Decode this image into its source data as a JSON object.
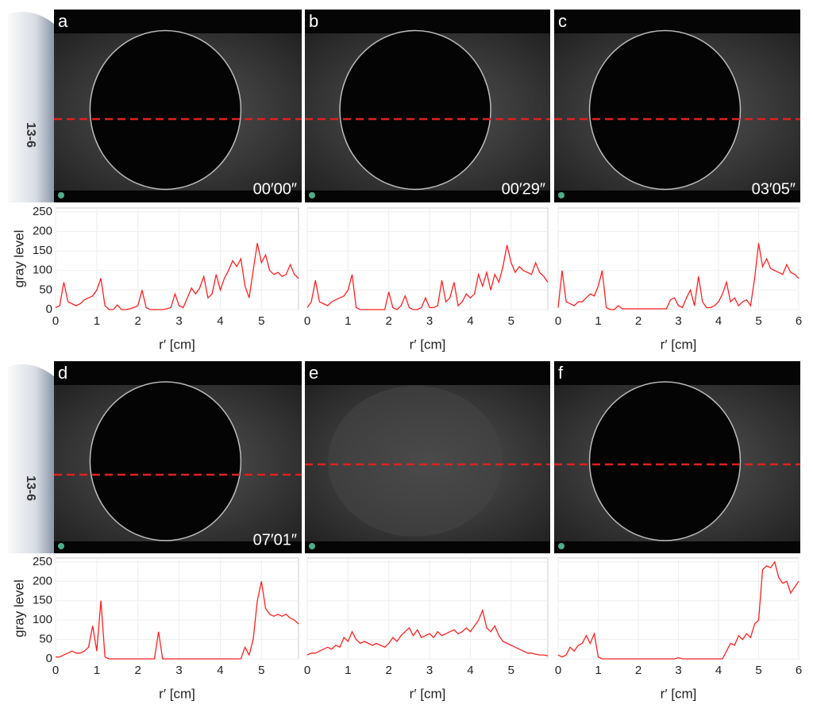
{
  "probe_labels": [
    "13-6",
    "13-6"
  ],
  "chart_data": [
    {
      "type": "line",
      "panel_label": "a",
      "timestamp": "00′00″",
      "ylabel": "gray level",
      "xlabel": "r′ [cm]",
      "color": "#ff2020",
      "grid": true,
      "show_yticklabels": true,
      "xlim": [
        0,
        5.9
      ],
      "xticks": [
        0,
        1,
        2,
        3,
        4,
        5
      ],
      "ylim": [
        0,
        260
      ],
      "yticks": [
        0,
        50,
        100,
        150,
        200,
        250
      ],
      "x": [
        0,
        0.1,
        0.2,
        0.3,
        0.4,
        0.5,
        0.6,
        0.7,
        0.8,
        0.9,
        1,
        1.1,
        1.2,
        1.3,
        1.4,
        1.5,
        1.6,
        1.7,
        1.8,
        1.9,
        2,
        2.1,
        2.2,
        2.3,
        2.4,
        2.5,
        2.6,
        2.7,
        2.8,
        2.9,
        3,
        3.1,
        3.2,
        3.3,
        3.4,
        3.5,
        3.6,
        3.7,
        3.8,
        3.9,
        4,
        4.1,
        4.2,
        4.3,
        4.4,
        4.5,
        4.6,
        4.7,
        4.8,
        4.9,
        5,
        5.1,
        5.2,
        5.3,
        5.4,
        5.5,
        5.6,
        5.7,
        5.8,
        5.9
      ],
      "values": [
        5,
        10,
        70,
        20,
        15,
        10,
        15,
        25,
        30,
        35,
        50,
        80,
        10,
        0,
        0,
        12,
        0,
        0,
        2,
        5,
        10,
        50,
        5,
        0,
        0,
        0,
        0,
        2,
        5,
        40,
        10,
        5,
        30,
        55,
        40,
        55,
        85,
        30,
        40,
        90,
        50,
        80,
        100,
        125,
        110,
        130,
        60,
        30,
        100,
        170,
        120,
        140,
        100,
        90,
        95,
        85,
        90,
        115,
        90,
        80
      ]
    },
    {
      "type": "line",
      "panel_label": "b",
      "timestamp": "00′29″",
      "xlabel": "r′ [cm]",
      "color": "#ff2020",
      "grid": true,
      "show_yticklabels": false,
      "xlim": [
        0,
        5.9
      ],
      "xticks": [
        0,
        1,
        2,
        3,
        4,
        5
      ],
      "ylim": [
        0,
        260
      ],
      "yticks": [
        0,
        50,
        100,
        150,
        200,
        250
      ],
      "x": [
        0,
        0.1,
        0.2,
        0.3,
        0.4,
        0.5,
        0.6,
        0.7,
        0.8,
        0.9,
        1,
        1.1,
        1.2,
        1.3,
        1.4,
        1.5,
        1.6,
        1.7,
        1.8,
        1.9,
        2,
        2.1,
        2.2,
        2.3,
        2.4,
        2.5,
        2.6,
        2.7,
        2.8,
        2.9,
        3,
        3.1,
        3.2,
        3.3,
        3.4,
        3.5,
        3.6,
        3.7,
        3.8,
        3.9,
        4,
        4.1,
        4.2,
        4.3,
        4.4,
        4.5,
        4.6,
        4.7,
        4.8,
        4.9,
        5,
        5.1,
        5.2,
        5.3,
        5.4,
        5.5,
        5.6,
        5.7,
        5.8,
        5.9
      ],
      "values": [
        5,
        20,
        75,
        20,
        15,
        10,
        20,
        25,
        30,
        35,
        50,
        90,
        5,
        0,
        0,
        0,
        0,
        0,
        0,
        0,
        45,
        5,
        0,
        10,
        35,
        5,
        0,
        0,
        5,
        30,
        5,
        5,
        10,
        75,
        20,
        30,
        70,
        10,
        20,
        40,
        30,
        40,
        90,
        60,
        95,
        50,
        90,
        70,
        110,
        165,
        120,
        95,
        110,
        100,
        95,
        90,
        120,
        95,
        85,
        70
      ]
    },
    {
      "type": "line",
      "panel_label": "c",
      "timestamp": "03′05″",
      "xlabel": "r′ [cm]",
      "color": "#ff2020",
      "grid": true,
      "show_yticklabels": false,
      "xlim": [
        0,
        6
      ],
      "xticks": [
        0,
        1,
        2,
        3,
        4,
        5,
        6
      ],
      "ylim": [
        0,
        260
      ],
      "yticks": [
        0,
        50,
        100,
        150,
        200,
        250
      ],
      "x": [
        0,
        0.1,
        0.2,
        0.3,
        0.4,
        0.5,
        0.6,
        0.7,
        0.8,
        0.9,
        1,
        1.1,
        1.2,
        1.3,
        1.4,
        1.5,
        1.6,
        1.7,
        1.8,
        1.9,
        2,
        2.1,
        2.2,
        2.3,
        2.4,
        2.5,
        2.6,
        2.7,
        2.8,
        2.9,
        3,
        3.1,
        3.2,
        3.3,
        3.4,
        3.5,
        3.6,
        3.7,
        3.8,
        3.9,
        4,
        4.1,
        4.2,
        4.3,
        4.4,
        4.5,
        4.6,
        4.7,
        4.8,
        4.9,
        5,
        5.1,
        5.2,
        5.3,
        5.4,
        5.5,
        5.6,
        5.7,
        5.8,
        5.9,
        6
      ],
      "values": [
        5,
        100,
        20,
        15,
        10,
        20,
        20,
        30,
        40,
        35,
        60,
        100,
        5,
        0,
        0,
        10,
        2,
        2,
        2,
        2,
        2,
        2,
        2,
        2,
        2,
        2,
        2,
        2,
        25,
        30,
        10,
        5,
        30,
        50,
        10,
        85,
        20,
        5,
        5,
        10,
        20,
        40,
        70,
        20,
        30,
        10,
        20,
        25,
        10,
        80,
        170,
        110,
        130,
        105,
        100,
        95,
        90,
        115,
        95,
        90,
        80
      ]
    },
    {
      "type": "line",
      "panel_label": "d",
      "timestamp": "07′01″",
      "ylabel": "gray level",
      "xlabel": "r′ [cm]",
      "color": "#ff2020",
      "grid": true,
      "show_yticklabels": true,
      "xlim": [
        0,
        5.9
      ],
      "xticks": [
        0,
        1,
        2,
        3,
        4,
        5
      ],
      "ylim": [
        0,
        260
      ],
      "yticks": [
        0,
        50,
        100,
        150,
        200,
        250
      ],
      "x": [
        0,
        0.1,
        0.2,
        0.3,
        0.4,
        0.5,
        0.6,
        0.7,
        0.8,
        0.9,
        1,
        1.1,
        1.2,
        1.3,
        1.4,
        1.5,
        1.6,
        1.7,
        1.8,
        1.9,
        2,
        2.1,
        2.2,
        2.3,
        2.4,
        2.5,
        2.6,
        2.7,
        2.8,
        2.9,
        3,
        3.1,
        3.2,
        3.3,
        3.4,
        3.5,
        3.6,
        3.7,
        3.8,
        3.9,
        4,
        4.1,
        4.2,
        4.3,
        4.4,
        4.5,
        4.6,
        4.7,
        4.8,
        4.9,
        5,
        5.1,
        5.2,
        5.3,
        5.4,
        5.5,
        5.6,
        5.7,
        5.8,
        5.9
      ],
      "values": [
        5,
        5,
        10,
        15,
        20,
        15,
        15,
        20,
        30,
        85,
        20,
        150,
        5,
        0,
        0,
        0,
        0,
        0,
        0,
        0,
        0,
        0,
        0,
        0,
        0,
        70,
        0,
        0,
        0,
        0,
        0,
        0,
        0,
        0,
        0,
        0,
        0,
        0,
        0,
        0,
        0,
        0,
        0,
        0,
        0,
        0,
        30,
        10,
        50,
        150,
        200,
        130,
        115,
        110,
        115,
        110,
        115,
        105,
        100,
        90
      ]
    },
    {
      "type": "line",
      "panel_label": "e",
      "xlabel": "r′ [cm]",
      "color": "#ff2020",
      "grid": true,
      "show_yticklabels": false,
      "xlim": [
        0,
        5.9
      ],
      "xticks": [
        0,
        1,
        2,
        3,
        4,
        5
      ],
      "ylim": [
        0,
        260
      ],
      "yticks": [
        0,
        50,
        100,
        150,
        200,
        250
      ],
      "x": [
        0,
        0.1,
        0.2,
        0.3,
        0.4,
        0.5,
        0.6,
        0.7,
        0.8,
        0.9,
        1,
        1.1,
        1.2,
        1.3,
        1.4,
        1.5,
        1.6,
        1.7,
        1.8,
        1.9,
        2,
        2.1,
        2.2,
        2.3,
        2.4,
        2.5,
        2.6,
        2.7,
        2.8,
        2.9,
        3,
        3.1,
        3.2,
        3.3,
        3.4,
        3.5,
        3.6,
        3.7,
        3.8,
        3.9,
        4,
        4.1,
        4.2,
        4.3,
        4.4,
        4.5,
        4.6,
        4.7,
        4.8,
        4.9,
        5,
        5.1,
        5.2,
        5.3,
        5.4,
        5.5,
        5.6,
        5.7,
        5.8,
        5.9
      ],
      "values": [
        10,
        15,
        15,
        20,
        25,
        30,
        25,
        35,
        30,
        55,
        45,
        70,
        50,
        40,
        45,
        40,
        35,
        40,
        35,
        30,
        40,
        55,
        45,
        60,
        70,
        80,
        60,
        75,
        55,
        60,
        65,
        55,
        70,
        60,
        65,
        70,
        75,
        65,
        70,
        80,
        70,
        85,
        100,
        125,
        80,
        70,
        85,
        60,
        45,
        40,
        35,
        30,
        25,
        20,
        15,
        15,
        12,
        10,
        10,
        8
      ]
    },
    {
      "type": "line",
      "panel_label": "f",
      "xlabel": "r′ [cm]",
      "color": "#ff2020",
      "grid": true,
      "show_yticklabels": false,
      "xlim": [
        0,
        6
      ],
      "xticks": [
        0,
        1,
        2,
        3,
        4,
        5,
        6
      ],
      "ylim": [
        0,
        260
      ],
      "yticks": [
        0,
        50,
        100,
        150,
        200,
        250
      ],
      "x": [
        0,
        0.1,
        0.2,
        0.3,
        0.4,
        0.5,
        0.6,
        0.7,
        0.8,
        0.9,
        1,
        1.1,
        1.2,
        1.3,
        1.4,
        1.5,
        1.6,
        1.7,
        1.8,
        1.9,
        2,
        2.1,
        2.2,
        2.3,
        2.4,
        2.5,
        2.6,
        2.7,
        2.8,
        2.9,
        3,
        3.1,
        3.2,
        3.3,
        3.4,
        3.5,
        3.6,
        3.7,
        3.8,
        3.9,
        4,
        4.1,
        4.2,
        4.3,
        4.4,
        4.5,
        4.6,
        4.7,
        4.8,
        4.9,
        5,
        5.1,
        5.2,
        5.3,
        5.4,
        5.5,
        5.6,
        5.7,
        5.8,
        5.9,
        6
      ],
      "values": [
        10,
        5,
        10,
        30,
        20,
        35,
        40,
        60,
        40,
        65,
        5,
        0,
        0,
        0,
        0,
        0,
        0,
        0,
        0,
        0,
        0,
        0,
        0,
        0,
        0,
        0,
        0,
        0,
        0,
        0,
        3,
        0,
        0,
        0,
        0,
        0,
        0,
        0,
        0,
        0,
        0,
        0,
        20,
        40,
        35,
        60,
        50,
        65,
        55,
        90,
        100,
        230,
        240,
        235,
        250,
        210,
        195,
        200,
        170,
        185,
        200
      ]
    }
  ]
}
